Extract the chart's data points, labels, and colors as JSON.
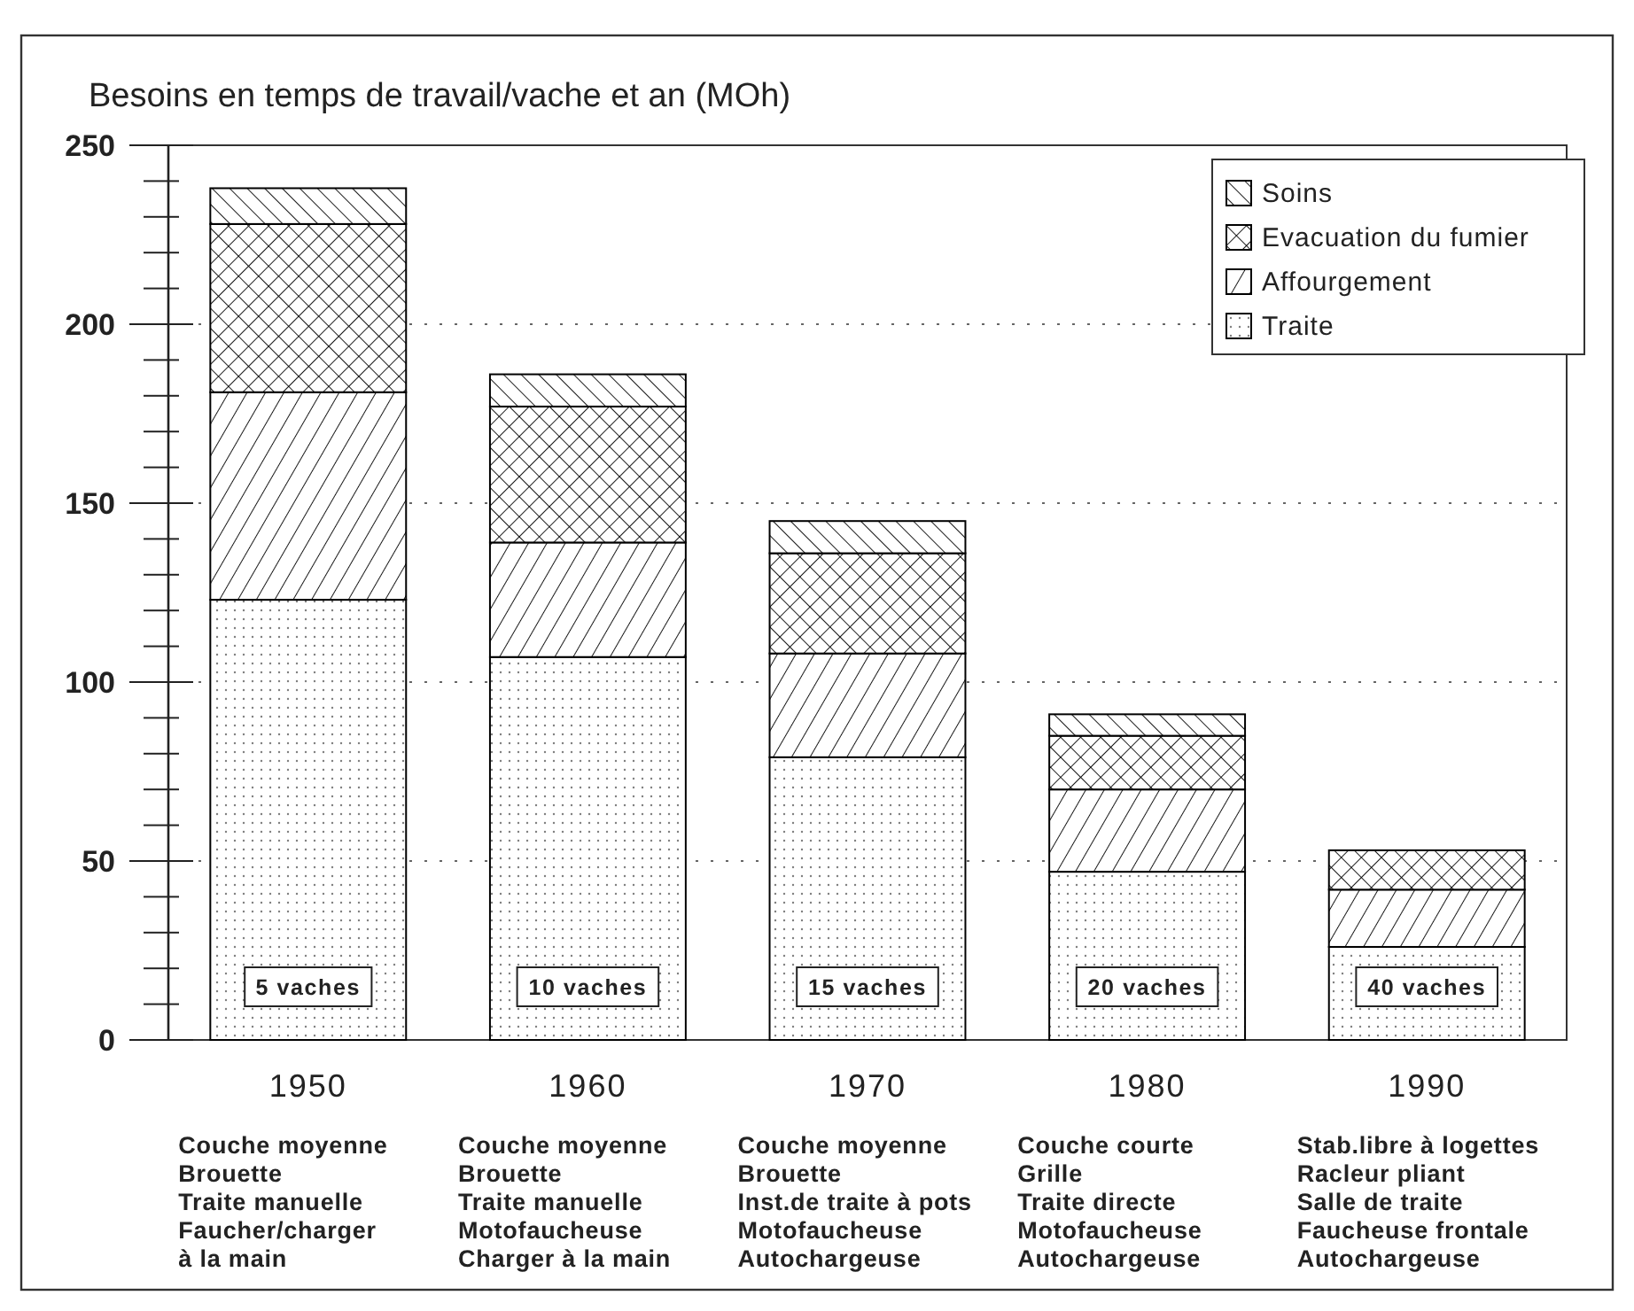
{
  "chart_data": {
    "type": "bar",
    "stacked": true,
    "title": "Besoins en temps de travail/vache et an (MOh)",
    "categories": [
      "1950",
      "1960",
      "1970",
      "1980",
      "1990"
    ],
    "series": [
      {
        "name": "Traite",
        "color": "#000000",
        "values": [
          123,
          107,
          79,
          47,
          26
        ]
      },
      {
        "name": "Affourgement",
        "color": "#000000",
        "values": [
          58,
          32,
          29,
          23,
          16
        ]
      },
      {
        "name": "Evacuation du fumier",
        "color": "#000000",
        "values": [
          47,
          38,
          28,
          15,
          11
        ]
      },
      {
        "name": "Soins",
        "color": "#000000",
        "values": [
          10,
          9,
          9,
          6,
          null
        ]
      }
    ],
    "ylim": [
      0,
      250
    ],
    "yticks": [
      0,
      {
        "value": 10,
        "label": null
      },
      {
        "value": 20,
        "label": null
      },
      {
        "value": 30,
        "label": null
      },
      {
        "value": 40,
        "label": null
      },
      50,
      {
        "value": 60,
        "label": null
      },
      {
        "value": 70,
        "label": null
      },
      {
        "value": 80,
        "label": null
      },
      {
        "value": 90,
        "label": null
      },
      100,
      {
        "value": 110,
        "label": null
      },
      {
        "value": 120,
        "label": null
      },
      {
        "value": 130,
        "label": null
      },
      {
        "value": 140,
        "label": null
      },
      150,
      {
        "value": 160,
        "label": null
      },
      {
        "value": 170,
        "label": null
      },
      {
        "value": 180,
        "label": null
      },
      {
        "value": 190,
        "label": null
      },
      200,
      {
        "value": 210,
        "label": null
      },
      {
        "value": 220,
        "label": null
      },
      {
        "value": 230,
        "label": null
      },
      {
        "value": 240,
        "label": null
      },
      250
    ],
    "grid": "y",
    "legend": "top right",
    "annotations": [
      "5 vaches",
      "10 vaches",
      "15 vaches",
      "20 vaches",
      "40 vaches",
      "Couche moyenne\nBrouette\nTraite manuelle\nFaucher/charger\nà la main",
      "Couche moyenne\nBrouette\nTraite manuelle\nMotofaucheuse\nCharger à la main",
      "Couche moyenne\nBrouette\nInst.de traite à pots\nMotofaucheuse\nAutochargeuse",
      "Couche courte\nGrille\nTraite directe\nMotofaucheuse\nAutochargeuse",
      "Stab.libre à logettes\nRacleur pliant\nSalle de traite\nFaucheuse frontale\nAutochargeuse"
    ]
  }
}
